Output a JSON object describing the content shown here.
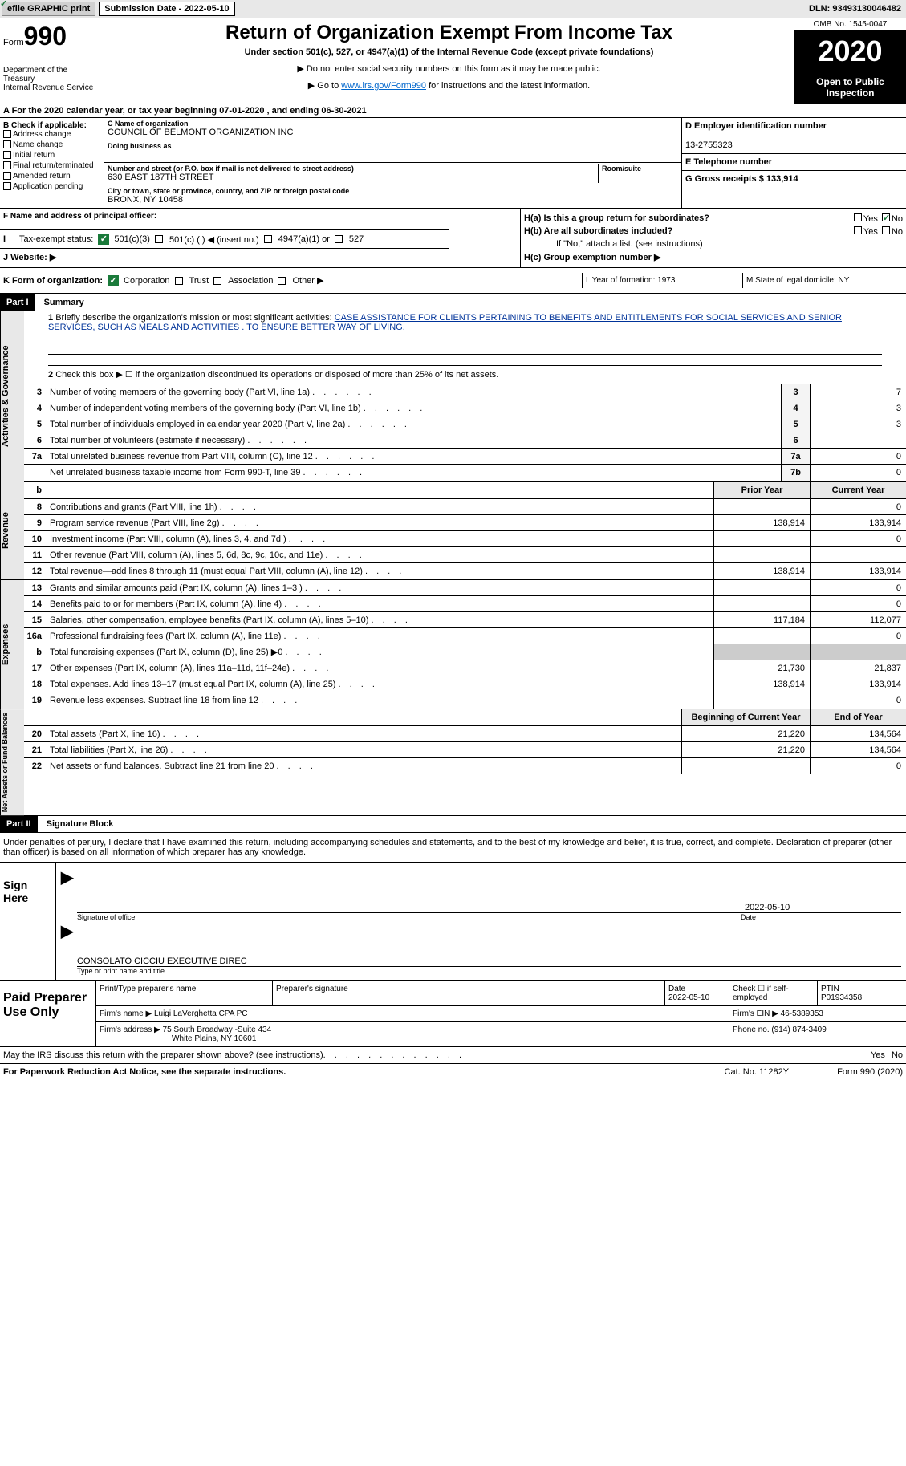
{
  "topbar": {
    "efile": "efile GRAPHIC print",
    "sub_date_label": "Submission Date - 2022-05-10",
    "dln": "DLN: 93493130046482"
  },
  "header": {
    "form_word": "Form",
    "form_num": "990",
    "dept": "Department of the Treasury\nInternal Revenue Service",
    "title": "Return of Organization Exempt From Income Tax",
    "subtitle": "Under section 501(c), 527, or 4947(a)(1) of the Internal Revenue Code (except private foundations)",
    "note1": "▶ Do not enter social security numbers on this form as it may be made public.",
    "note2_pre": "▶ Go to ",
    "note2_link": "www.irs.gov/Form990",
    "note2_post": " for instructions and the latest information.",
    "omb": "OMB No. 1545-0047",
    "year": "2020",
    "inspection": "Open to Public Inspection"
  },
  "period": "A For the 2020 calendar year, or tax year beginning 07-01-2020   , and ending 06-30-2021",
  "boxB": {
    "label": "B Check if applicable:",
    "opts": [
      "Address change",
      "Name change",
      "Initial return",
      "Final return/terminated",
      "Amended return",
      "Application pending"
    ]
  },
  "boxC": {
    "name_label": "C Name of organization",
    "name": "COUNCIL OF BELMONT ORGANIZATION INC",
    "dba_label": "Doing business as",
    "addr_label": "Number and street (or P.O. box if mail is not delivered to street address)",
    "room_label": "Room/suite",
    "addr": "630 EAST 187TH STREET",
    "city_label": "City or town, state or province, country, and ZIP or foreign postal code",
    "city": "BRONX, NY  10458"
  },
  "boxD": {
    "label": "D Employer identification number",
    "value": "13-2755323"
  },
  "boxE": {
    "label": "E Telephone number"
  },
  "boxG": {
    "label": "G Gross receipts $ 133,914"
  },
  "boxF": {
    "label": "F Name and address of principal officer:"
  },
  "boxH": {
    "a": "H(a)  Is this a group return for subordinates?",
    "b": "H(b)  Are all subordinates included?",
    "b_note": "If \"No,\" attach a list. (see instructions)",
    "c": "H(c)  Group exemption number ▶",
    "yes": "Yes",
    "no": "No"
  },
  "rowI": {
    "label": "Tax-exempt status:",
    "opts": [
      "501(c)(3)",
      "501(c) (  ) ◀ (insert no.)",
      "4947(a)(1) or",
      "527"
    ]
  },
  "rowJ": {
    "label": "J   Website: ▶"
  },
  "rowK": {
    "label": "K Form of organization:",
    "opts": [
      "Corporation",
      "Trust",
      "Association",
      "Other ▶"
    ]
  },
  "rowL": "L Year of formation: 1973",
  "rowM": "M State of legal domicile: NY",
  "partI": {
    "num": "Part I",
    "title": "Summary"
  },
  "summary": {
    "line1": "Briefly describe the organization's mission or most significant activities:",
    "mission": "CASE ASSISTANCE FOR CLIENTS PERTAINING TO BENEFITS AND ENTITLEMENTS FOR SOCIAL SERVICES AND SENIOR SERVICES, SUCH AS MEALS AND ACTIVITIES . TO ENSURE BETTER WAY OF LIVING.",
    "line2": "Check this box ▶ ☐  if the organization discontinued its operations or disposed of more than 25% of its net assets."
  },
  "sideLabels": {
    "gov": "Activities & Governance",
    "rev": "Revenue",
    "exp": "Expenses",
    "net": "Net Assets or Fund Balances"
  },
  "govLines": [
    {
      "n": "3",
      "d": "Number of voting members of the governing body (Part VI, line 1a)",
      "k": "3",
      "v": "7"
    },
    {
      "n": "4",
      "d": "Number of independent voting members of the governing body (Part VI, line 1b)",
      "k": "4",
      "v": "3"
    },
    {
      "n": "5",
      "d": "Total number of individuals employed in calendar year 2020 (Part V, line 2a)",
      "k": "5",
      "v": "3"
    },
    {
      "n": "6",
      "d": "Total number of volunteers (estimate if necessary)",
      "k": "6",
      "v": ""
    },
    {
      "n": "7a",
      "d": "Total unrelated business revenue from Part VIII, column (C), line 12",
      "k": "7a",
      "v": "0"
    },
    {
      "n": "",
      "d": "Net unrelated business taxable income from Form 990-T, line 39",
      "k": "7b",
      "v": "0"
    }
  ],
  "col_hdrs": {
    "prior": "Prior Year",
    "current": "Current Year",
    "begin": "Beginning of Current Year",
    "end": "End of Year"
  },
  "revLines": [
    {
      "n": "8",
      "d": "Contributions and grants (Part VIII, line 1h)",
      "p": "",
      "c": "0"
    },
    {
      "n": "9",
      "d": "Program service revenue (Part VIII, line 2g)",
      "p": "138,914",
      "c": "133,914"
    },
    {
      "n": "10",
      "d": "Investment income (Part VIII, column (A), lines 3, 4, and 7d )",
      "p": "",
      "c": "0"
    },
    {
      "n": "11",
      "d": "Other revenue (Part VIII, column (A), lines 5, 6d, 8c, 9c, 10c, and 11e)",
      "p": "",
      "c": ""
    },
    {
      "n": "12",
      "d": "Total revenue—add lines 8 through 11 (must equal Part VIII, column (A), line 12)",
      "p": "138,914",
      "c": "133,914"
    }
  ],
  "expLines": [
    {
      "n": "13",
      "d": "Grants and similar amounts paid (Part IX, column (A), lines 1–3 )",
      "p": "",
      "c": "0"
    },
    {
      "n": "14",
      "d": "Benefits paid to or for members (Part IX, column (A), line 4)",
      "p": "",
      "c": "0"
    },
    {
      "n": "15",
      "d": "Salaries, other compensation, employee benefits (Part IX, column (A), lines 5–10)",
      "p": "117,184",
      "c": "112,077"
    },
    {
      "n": "16a",
      "d": "Professional fundraising fees (Part IX, column (A), line 11e)",
      "p": "",
      "c": "0"
    },
    {
      "n": "b",
      "d": "Total fundraising expenses (Part IX, column (D), line 25) ▶0",
      "p": "SHADE",
      "c": "SHADE"
    },
    {
      "n": "17",
      "d": "Other expenses (Part IX, column (A), lines 11a–11d, 11f–24e)",
      "p": "21,730",
      "c": "21,837"
    },
    {
      "n": "18",
      "d": "Total expenses. Add lines 13–17 (must equal Part IX, column (A), line 25)",
      "p": "138,914",
      "c": "133,914"
    },
    {
      "n": "19",
      "d": "Revenue less expenses. Subtract line 18 from line 12",
      "p": "",
      "c": "0"
    }
  ],
  "netLines": [
    {
      "n": "20",
      "d": "Total assets (Part X, line 16)",
      "p": "21,220",
      "c": "134,564"
    },
    {
      "n": "21",
      "d": "Total liabilities (Part X, line 26)",
      "p": "21,220",
      "c": "134,564"
    },
    {
      "n": "22",
      "d": "Net assets or fund balances. Subtract line 21 from line 20",
      "p": "",
      "c": "0"
    }
  ],
  "partII": {
    "num": "Part II",
    "title": "Signature Block"
  },
  "sig": {
    "penalties": "Under penalties of perjury, I declare that I have examined this return, including accompanying schedules and statements, and to the best of my knowledge and belief, it is true, correct, and complete. Declaration of preparer (other than officer) is based on all information of which preparer has any knowledge.",
    "sign_here": "Sign Here",
    "sig_officer": "Signature of officer",
    "date": "2022-05-10",
    "date_lbl": "Date",
    "name": "CONSOLATO CICCIU  EXECUTIVE DIREC",
    "name_lbl": "Type or print name and title"
  },
  "paid": {
    "label": "Paid Preparer Use Only",
    "h1": "Print/Type preparer's name",
    "h2": "Preparer's signature",
    "h3": "Date",
    "h3v": "2022-05-10",
    "h4": "Check ☐ if self-employed",
    "h5": "PTIN",
    "h5v": "P01934358",
    "firm_name_lbl": "Firm's name   ▶",
    "firm_name": "Luigi LaVerghetta CPA PC",
    "firm_ein_lbl": "Firm's EIN ▶",
    "firm_ein": "46-5389353",
    "firm_addr_lbl": "Firm's address ▶",
    "firm_addr": "75 South Broadway -Suite 434",
    "firm_addr2": "White Plains, NY  10601",
    "phone_lbl": "Phone no.",
    "phone": "(914) 874-3409"
  },
  "footer": {
    "discuss": "May the IRS discuss this return with the preparer shown above? (see instructions)",
    "paperwork": "For Paperwork Reduction Act Notice, see the separate instructions.",
    "cat": "Cat. No. 11282Y",
    "form": "Form 990 (2020)"
  }
}
